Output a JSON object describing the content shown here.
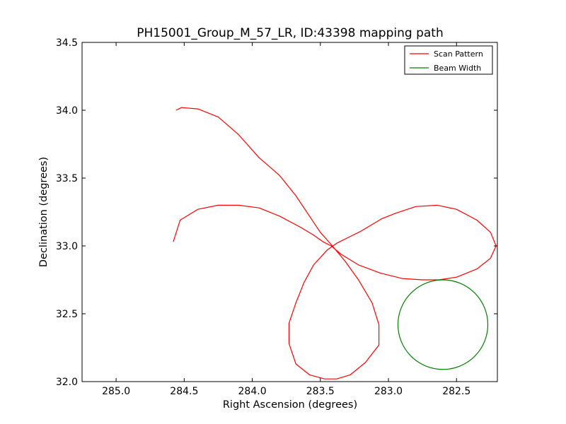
{
  "chart_data": {
    "type": "line",
    "title": "PH15001_Group_M_57_LR, ID:43398 mapping path",
    "xlabel": "Right Ascension (degrees)",
    "ylabel": "Declination (degrees)",
    "xlim": [
      285.25,
      282.2
    ],
    "ylim": [
      32.0,
      34.5
    ],
    "xticks": [
      285.0,
      284.5,
      284.0,
      283.5,
      283.0,
      282.5
    ],
    "yticks": [
      32.0,
      32.5,
      33.0,
      33.5,
      34.0,
      34.5
    ],
    "xtick_labels": [
      "285.0",
      "284.5",
      "284.0",
      "283.5",
      "283.0",
      "282.5"
    ],
    "ytick_labels": [
      "32.0",
      "32.5",
      "33.0",
      "33.5",
      "34.0",
      "34.5"
    ],
    "grid": false,
    "legend": "top-right",
    "series": [
      {
        "name": "Scan Pattern",
        "color": "#ff0000",
        "x": [
          284.58,
          284.53,
          284.4,
          284.25,
          284.1,
          283.95,
          283.8,
          283.65,
          283.55,
          283.48,
          283.42,
          283.35,
          283.22,
          283.06,
          282.9,
          282.75,
          282.63,
          282.5,
          282.35,
          282.25,
          282.21,
          282.25,
          282.35,
          282.5,
          282.64,
          282.8,
          282.95,
          283.05,
          283.2,
          283.3,
          283.38,
          283.45,
          283.55,
          283.62,
          283.68,
          283.73,
          283.73,
          283.68,
          283.58,
          283.47,
          283.38,
          283.28,
          283.17,
          283.07,
          283.07,
          283.12,
          283.22,
          283.32,
          283.42,
          283.5,
          283.58,
          283.68,
          283.8,
          283.95,
          284.1,
          284.25,
          284.4,
          284.52,
          284.56
        ],
        "y": [
          33.03,
          33.19,
          33.27,
          33.3,
          33.3,
          33.28,
          33.22,
          33.14,
          33.08,
          33.03,
          33.0,
          32.94,
          32.86,
          32.8,
          32.76,
          32.75,
          32.75,
          32.77,
          32.83,
          32.91,
          33.0,
          33.1,
          33.19,
          33.27,
          33.3,
          33.29,
          33.24,
          33.2,
          33.11,
          33.06,
          33.02,
          32.97,
          32.86,
          32.73,
          32.58,
          32.43,
          32.28,
          32.13,
          32.05,
          32.02,
          32.02,
          32.05,
          32.14,
          32.27,
          32.42,
          32.58,
          32.75,
          32.89,
          33.01,
          33.1,
          33.22,
          33.37,
          33.52,
          33.65,
          33.82,
          33.95,
          34.01,
          34.02,
          34.0
        ]
      },
      {
        "name": "Beam Width",
        "color": "#008000",
        "center": [
          282.6,
          32.42
        ],
        "radius_deg": 0.33
      }
    ]
  }
}
